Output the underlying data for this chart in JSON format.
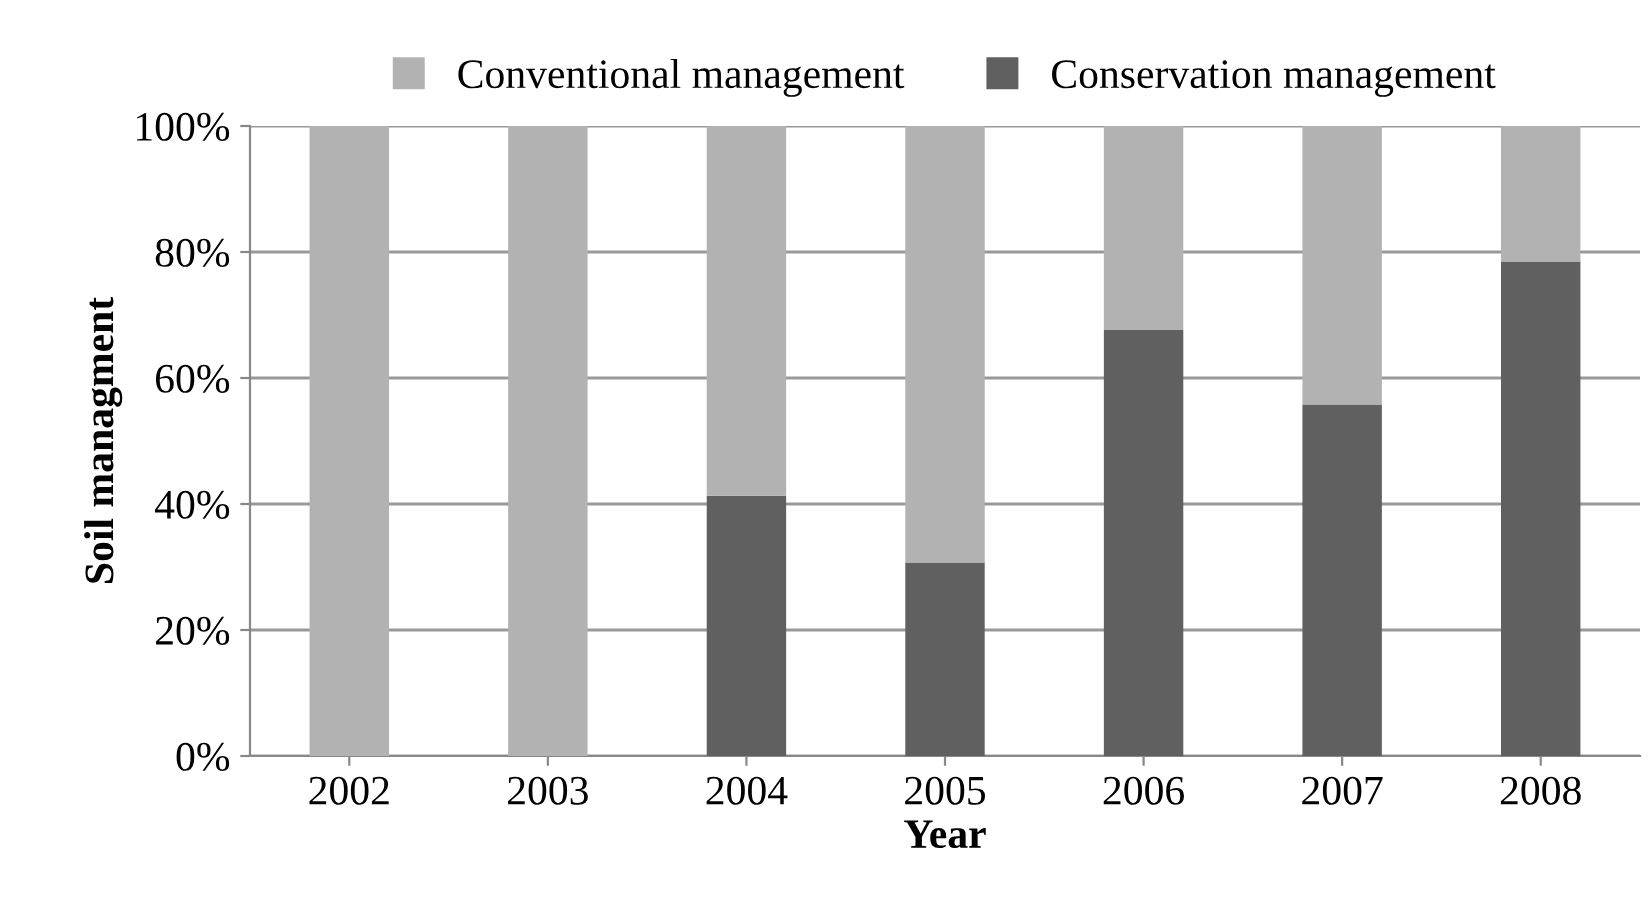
{
  "chart_data": {
    "type": "bar",
    "stacked": true,
    "xlabel": "Year",
    "ylabel": "Soil managment",
    "categories": [
      "2002",
      "2003",
      "2004",
      "2005",
      "2006",
      "2007",
      "2008"
    ],
    "series": [
      {
        "name": "Conservation management",
        "color": "#606060",
        "values": [
          0,
          0,
          41.3,
          30.7,
          67.7,
          55.8,
          78.5
        ]
      },
      {
        "name": "Conventional management",
        "color": "#b2b2b2",
        "values": [
          100,
          100,
          58.7,
          69.3,
          32.3,
          44.2,
          21.5
        ]
      }
    ],
    "ylim": [
      0,
      100
    ],
    "yticks": [
      {
        "value": 0,
        "label": "0%"
      },
      {
        "value": 20,
        "label": "20%"
      },
      {
        "value": 40,
        "label": "40%"
      },
      {
        "value": 60,
        "label": "60%"
      },
      {
        "value": 80,
        "label": "80%"
      },
      {
        "value": 100,
        "label": "100%"
      }
    ],
    "grid": "y",
    "legend": "top"
  }
}
